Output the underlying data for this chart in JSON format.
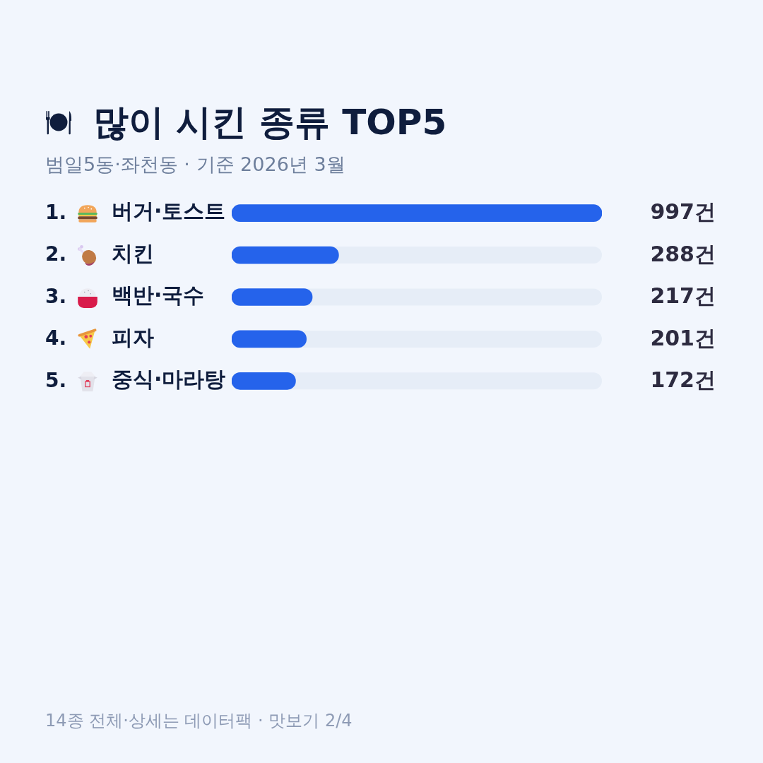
{
  "chart_data": {
    "type": "bar",
    "orientation": "horizontal",
    "title": "많이 시킨 종류 TOP5",
    "subtitle": "범일5동·좌천동 · 기준 2026년 3월",
    "categories": [
      "버거·토스트",
      "치킨",
      "백반·국수",
      "피자",
      "중식·마라탕"
    ],
    "values": [
      997,
      288,
      217,
      201,
      172
    ],
    "value_labels": [
      "997건",
      "288건",
      "217건",
      "201건",
      "172건"
    ],
    "color": "#2563eb",
    "xlim": [
      0,
      997
    ],
    "tick_labels": "y",
    "annotations": [
      "1.",
      "2.",
      "3.",
      "4.",
      "5.",
      "14종 전체·상세는 데이터팩 · 맛보기 2/4"
    ]
  }
}
